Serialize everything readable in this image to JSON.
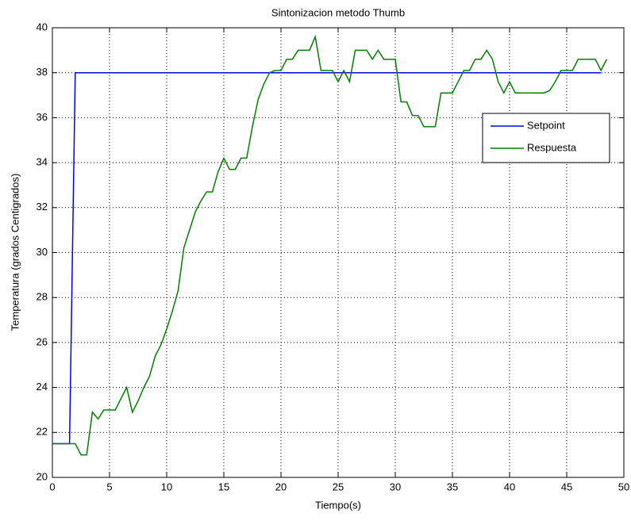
{
  "chart_data": {
    "type": "line",
    "title": "Sintonizacion metodo Thumb",
    "x_label": "Tiempo(s)",
    "y_label": "Temperatura (grados Centigrados)",
    "xlim": [
      0,
      50
    ],
    "ylim": [
      20,
      40
    ],
    "xticks": [
      0,
      5,
      10,
      15,
      20,
      25,
      30,
      35,
      40,
      45,
      50
    ],
    "yticks": [
      20,
      22,
      24,
      26,
      28,
      30,
      32,
      34,
      36,
      38,
      40
    ],
    "grid": true,
    "legend": "northeast",
    "series": [
      {
        "name": "Setpoint",
        "color": "#0000ff",
        "x": [
          0,
          1.5,
          2,
          48
        ],
        "values": [
          21.5,
          21.5,
          38,
          38
        ]
      },
      {
        "name": "Respuesta",
        "color": "#008000",
        "x": [
          0,
          2,
          2.5,
          3,
          3.5,
          4,
          4.5,
          5,
          5.5,
          6,
          6.5,
          7,
          7.5,
          8,
          8.5,
          9,
          9.5,
          10,
          10.5,
          11,
          11.5,
          12,
          12.5,
          13,
          13.5,
          14,
          14.5,
          15,
          15.5,
          16,
          16.5,
          17,
          17.5,
          18,
          18.5,
          19,
          19.5,
          20,
          20.5,
          21,
          21.5,
          22,
          22.5,
          23,
          23.5,
          24,
          24.5,
          25,
          25.5,
          26,
          26.5,
          27,
          27.5,
          28,
          28.5,
          29,
          29.5,
          30,
          30.5,
          31,
          31.5,
          32,
          32.5,
          33,
          33.5,
          34,
          34.5,
          35,
          35.5,
          36,
          36.5,
          37,
          37.5,
          38,
          38.5,
          39,
          39.5,
          40,
          40.5,
          41,
          42,
          43,
          43.5,
          44,
          44.5,
          45,
          45.5,
          46,
          47,
          47.5,
          48,
          48.5
        ],
        "values": [
          21.5,
          21.5,
          21.0,
          21.0,
          22.9,
          22.6,
          23.0,
          23.0,
          23.0,
          23.5,
          24.0,
          22.9,
          23.4,
          24.0,
          24.5,
          25.4,
          25.9,
          26.6,
          27.4,
          28.3,
          30.2,
          31.0,
          31.8,
          32.3,
          32.7,
          32.7,
          33.6,
          34.2,
          33.7,
          33.7,
          34.2,
          34.2,
          35.6,
          36.8,
          37.5,
          38.0,
          38.1,
          38.1,
          38.6,
          38.6,
          39.0,
          39.0,
          39.0,
          39.6,
          38.1,
          38.1,
          38.1,
          37.6,
          38.1,
          37.6,
          39.0,
          39.0,
          39.0,
          38.6,
          39.0,
          38.6,
          38.6,
          38.6,
          36.7,
          36.7,
          36.1,
          36.1,
          35.6,
          35.6,
          35.6,
          37.1,
          37.1,
          37.1,
          37.6,
          38.1,
          38.1,
          38.6,
          38.6,
          39.0,
          38.6,
          37.6,
          37.1,
          37.6,
          37.1,
          37.1,
          37.1,
          37.1,
          37.2,
          37.6,
          38.1,
          38.1,
          38.1,
          38.6,
          38.6,
          38.6,
          38.1,
          38.6
        ]
      }
    ]
  }
}
